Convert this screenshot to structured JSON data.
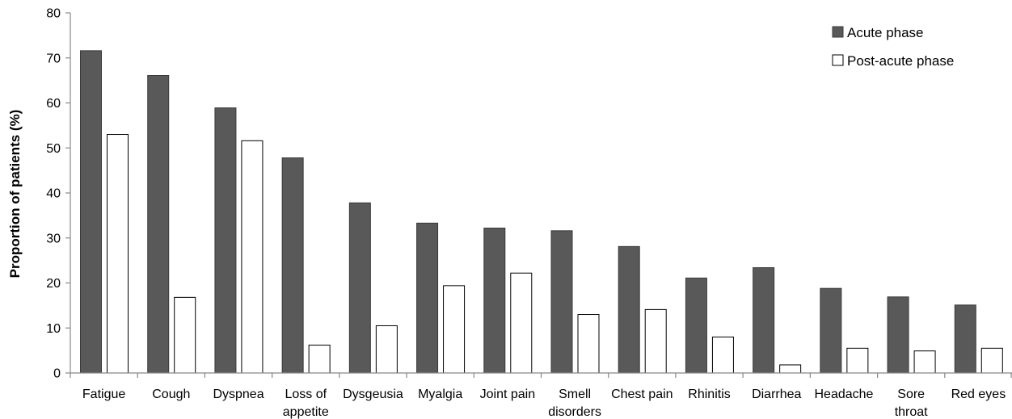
{
  "chart_data": {
    "type": "bar",
    "ylabel": "Proportion of patients (%)",
    "xlabel": "",
    "ylim": [
      0,
      80
    ],
    "yticks": [
      0,
      10,
      20,
      30,
      40,
      50,
      60,
      70,
      80
    ],
    "grid": false,
    "legend_position": "top-right",
    "categories": [
      [
        "Fatigue"
      ],
      [
        "Cough"
      ],
      [
        "Dyspnea"
      ],
      [
        "Loss of",
        "appetite"
      ],
      [
        "Dysgeusia"
      ],
      [
        "Myalgia"
      ],
      [
        "Joint pain"
      ],
      [
        "Smell",
        "disorders"
      ],
      [
        "Chest pain"
      ],
      [
        "Rhinitis"
      ],
      [
        "Diarrhea"
      ],
      [
        "Headache"
      ],
      [
        "Sore",
        "throat"
      ],
      [
        "Red eyes"
      ]
    ],
    "series": [
      {
        "name": "Acute phase",
        "color": "#595959",
        "values": [
          71.6,
          66.1,
          58.9,
          47.8,
          37.8,
          33.3,
          32.2,
          31.6,
          28.1,
          21.1,
          23.4,
          18.8,
          16.9,
          15.1
        ]
      },
      {
        "name": "Post-acute phase",
        "color": "#ffffff",
        "values": [
          53.0,
          16.8,
          51.6,
          6.2,
          10.5,
          19.4,
          22.2,
          13.0,
          14.1,
          8.0,
          1.8,
          5.5,
          4.9,
          5.5
        ]
      }
    ]
  }
}
